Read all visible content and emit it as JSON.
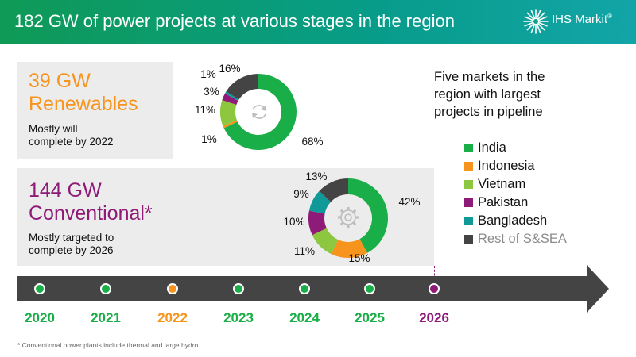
{
  "header": {
    "title": "182 GW of power projects at various stages in the region",
    "logo_text": "IHS Markit",
    "logo_mark": "®"
  },
  "renewables": {
    "headline_1": "39 GW",
    "headline_2": "Renewables",
    "sub_1": "Mostly will",
    "sub_2": "complete by 2022",
    "icon": "refresh-icon"
  },
  "conventional": {
    "headline_1": "144 GW",
    "headline_2": "Conventional*",
    "sub_1": "Mostly targeted to",
    "sub_2": "complete by 2026",
    "icon": "gear-icon"
  },
  "side_title": {
    "line_1": "Five markets in the",
    "line_2": "region with largest",
    "line_3": "projects in pipeline"
  },
  "legend": [
    {
      "label": "India",
      "color": "#1aae48",
      "text_color": "#111111"
    },
    {
      "label": "Indonesia",
      "color": "#f7941d",
      "text_color": "#111111"
    },
    {
      "label": "Vietnam",
      "color": "#8dc63f",
      "text_color": "#111111"
    },
    {
      "label": "Pakistan",
      "color": "#8e1b78",
      "text_color": "#111111"
    },
    {
      "label": "Bangladesh",
      "color": "#0f9999",
      "text_color": "#111111"
    },
    {
      "label": "Rest of S&SEA",
      "color": "#444444",
      "text_color": "#8c8c8c"
    }
  ],
  "chart_data": [
    {
      "type": "pie",
      "subtype": "donut",
      "categories": [
        "India",
        "Indonesia",
        "Vietnam",
        "Pakistan",
        "Bangladesh",
        "Rest of S&SEA"
      ],
      "values": [
        68,
        1,
        11,
        3,
        1,
        16
      ],
      "labels": [
        "68%",
        "1%",
        "11%",
        "3%",
        "1%",
        "16%"
      ],
      "colors": [
        "#1aae48",
        "#f7941d",
        "#8dc63f",
        "#8e1b78",
        "#0f9999",
        "#444444"
      ]
    },
    {
      "type": "pie",
      "subtype": "donut",
      "categories": [
        "India",
        "Indonesia",
        "Vietnam",
        "Pakistan",
        "Bangladesh",
        "Rest of S&SEA"
      ],
      "values": [
        42,
        15,
        11,
        10,
        9,
        13
      ],
      "labels": [
        "42%",
        "15%",
        "11%",
        "10%",
        "9%",
        "13%"
      ],
      "colors": [
        "#1aae48",
        "#f7941d",
        "#8dc63f",
        "#8e1b78",
        "#0f9999",
        "#444444"
      ]
    }
  ],
  "timeline": {
    "years": [
      {
        "label": "2020",
        "color": "#1aae48"
      },
      {
        "label": "2021",
        "color": "#1aae48"
      },
      {
        "label": "2022",
        "color": "#f7941d"
      },
      {
        "label": "2023",
        "color": "#1aae48"
      },
      {
        "label": "2024",
        "color": "#1aae48"
      },
      {
        "label": "2025",
        "color": "#1aae48"
      },
      {
        "label": "2026",
        "color": "#8e1b78"
      }
    ],
    "bar_color": "#444444"
  },
  "footnote": "* Conventional power plants include thermal and large hydro"
}
